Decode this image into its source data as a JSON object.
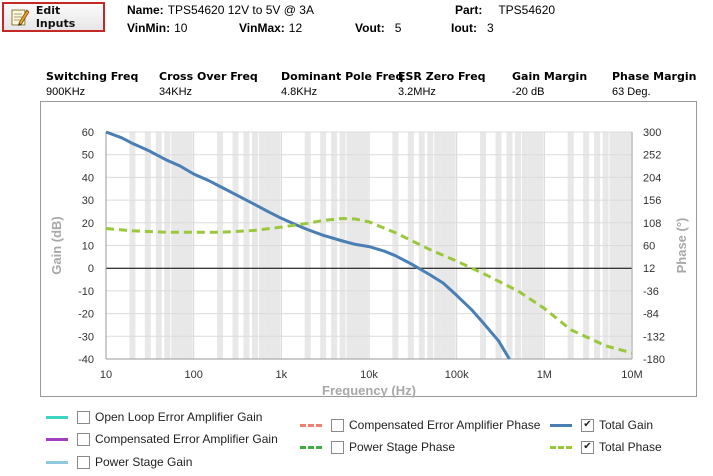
{
  "toolbar": {
    "edit_label": "Edit Inputs"
  },
  "header": {
    "name_label": "Name:",
    "name_value": "TPS54620 12V to 5V @ 3A",
    "part_label": "Part:",
    "part_value": "TPS54620",
    "vinmin_label": "VinMin:",
    "vinmin_value": "10",
    "vinmax_label": "VinMax:",
    "vinmax_value": "12",
    "vout_label": "Vout:",
    "vout_value": "5",
    "iout_label": "Iout:",
    "iout_value": "3"
  },
  "metrics": [
    {
      "label": "Switching Freq",
      "value": "900KHz"
    },
    {
      "label": "Cross Over Freq",
      "value": "34KHz"
    },
    {
      "label": "Dominant Pole Freq",
      "value": "4.8KHz"
    },
    {
      "label": "ESR Zero Freq",
      "value": "3.2MHz"
    },
    {
      "label": "Gain Margin",
      "value": "-20 dB"
    },
    {
      "label": "Phase Margin",
      "value": "63 Deg."
    }
  ],
  "chart_data": {
    "type": "line",
    "title": "",
    "xlabel": "Frequency (Hz)",
    "ylabel": "Gain (dB)",
    "y2label": "Phase (°)",
    "x_scale": "log",
    "xlim": [
      10,
      10000000
    ],
    "ylim": [
      -40,
      60
    ],
    "y2lim": [
      -180,
      300
    ],
    "x_ticks": [
      "10",
      "100",
      "1k",
      "10k",
      "100k",
      "1M",
      "10M"
    ],
    "y_ticks": [
      "60",
      "50",
      "40",
      "30",
      "20",
      "10",
      "0",
      "-10",
      "-20",
      "-30",
      "-40"
    ],
    "y2_ticks": [
      "300",
      "252",
      "204",
      "156",
      "108",
      "60",
      "12",
      "-36",
      "-84",
      "-132",
      "-180"
    ],
    "grid": true,
    "series": [
      {
        "name": "Total Gain",
        "axis": "left",
        "color": "#4a7fb5",
        "style": "solid",
        "x": [
          10,
          15,
          20,
          30,
          50,
          70,
          100,
          150,
          200,
          300,
          500,
          700,
          1000,
          1500,
          2000,
          3000,
          5000,
          7000,
          10000,
          15000,
          20000,
          30000,
          50000,
          70000,
          100000,
          150000,
          200000,
          300000,
          400000
        ],
        "y": [
          60,
          57.5,
          55,
          52,
          47.5,
          45,
          41.5,
          38.5,
          36,
          32.5,
          28,
          25,
          22,
          19,
          17,
          14.5,
          12,
          10.5,
          9.5,
          7.5,
          5.5,
          2,
          -3,
          -6.5,
          -12,
          -18.5,
          -24,
          -32,
          -40
        ]
      },
      {
        "name": "Total Phase",
        "axis": "right",
        "color": "#9ac83c",
        "style": "dashed",
        "x": [
          10,
          20,
          50,
          100,
          200,
          500,
          1000,
          2000,
          3000,
          5000,
          7000,
          10000,
          20000,
          50000,
          100000,
          200000,
          500000,
          1000000,
          2000000,
          5000000,
          10000000
        ],
        "y": [
          96,
          91,
          88,
          88,
          88,
          92,
          99,
          107,
          113,
          117,
          116,
          110,
          87,
          51,
          27,
          1,
          -36,
          -73,
          -118,
          -152,
          -167
        ]
      }
    ]
  },
  "legend": {
    "items": [
      {
        "label": "Open Loop Error Amplifier Gain",
        "color": "#3ed4c4",
        "style": "solid",
        "checked": false
      },
      {
        "label": "Compensated Error Amplifier Gain",
        "color": "#a040c0",
        "style": "solid",
        "checked": false
      },
      {
        "label": "Power Stage Gain",
        "color": "#90c8e0",
        "style": "solid",
        "checked": false
      },
      {
        "label": "Compensated Error Amplifier Phase",
        "color": "#ef7f6f",
        "style": "dashed",
        "checked": false
      },
      {
        "label": "Power Stage Phase",
        "color": "#3fae3f",
        "style": "dashed",
        "checked": false
      },
      {
        "label": "Total Gain",
        "color": "#4a7fb5",
        "style": "solid",
        "checked": true
      },
      {
        "label": "Total Phase",
        "color": "#9ac83c",
        "style": "dashed",
        "checked": true
      }
    ]
  }
}
